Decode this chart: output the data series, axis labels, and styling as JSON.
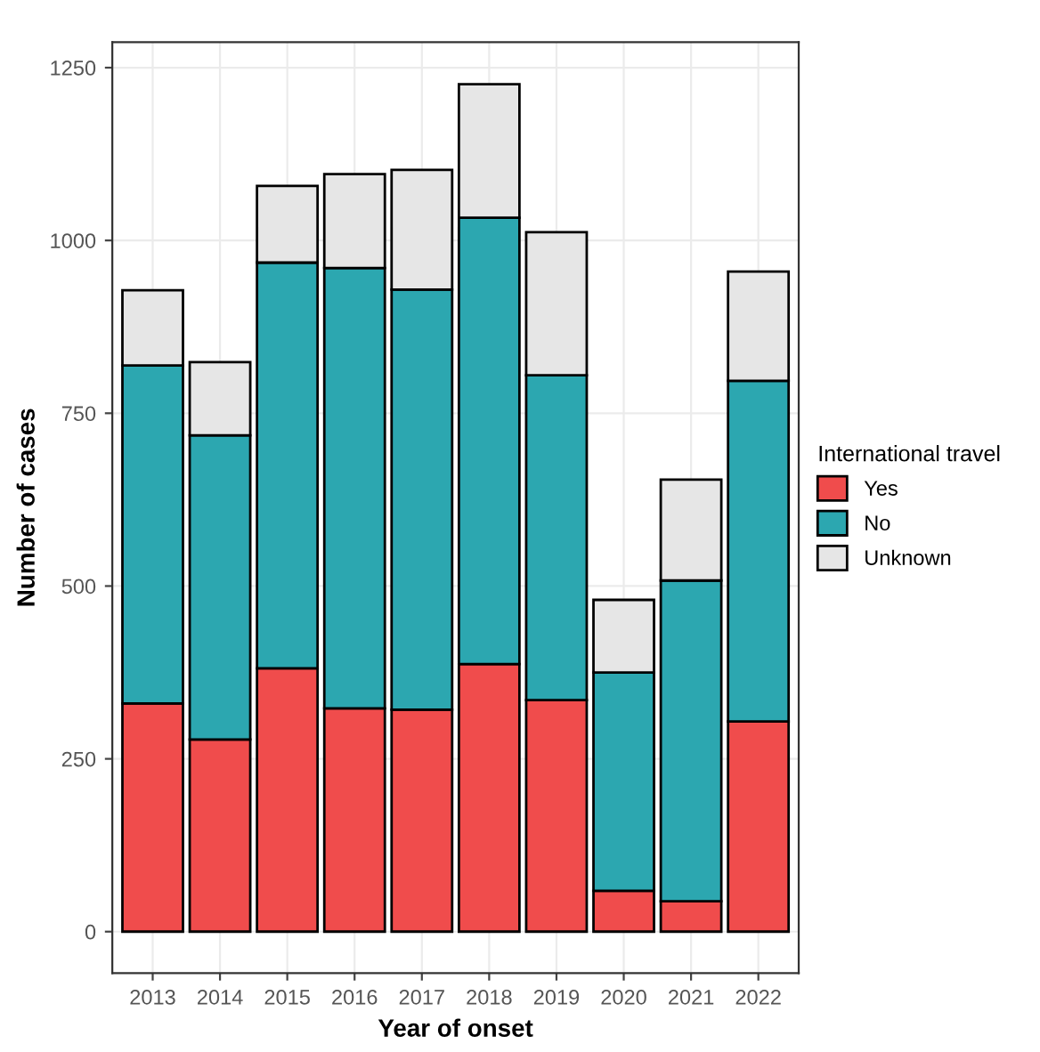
{
  "chart_data": {
    "type": "bar",
    "xlabel": "Year of onset",
    "ylabel": "Number of cases",
    "legend_title": "International travel",
    "categories": [
      "2013",
      "2014",
      "2015",
      "2016",
      "2017",
      "2018",
      "2019",
      "2020",
      "2021",
      "2022"
    ],
    "stacked": true,
    "series": [
      {
        "name": "Yes",
        "color": "#f04c4c",
        "values": [
          330,
          278,
          381,
          323,
          321,
          387,
          335,
          59,
          44,
          304
        ]
      },
      {
        "name": "No",
        "color": "#2ca7b0",
        "values": [
          489,
          440,
          587,
          637,
          608,
          646,
          470,
          316,
          464,
          493
        ]
      },
      {
        "name": "Unknown",
        "color": "#e6e6e6",
        "values": [
          109,
          106,
          111,
          136,
          173,
          193,
          207,
          105,
          146,
          158
        ]
      }
    ],
    "ylim": [
      -60,
      1287
    ],
    "yticks": [
      0,
      250,
      500,
      750,
      1000,
      1250
    ],
    "grid": true,
    "legend": "right"
  }
}
